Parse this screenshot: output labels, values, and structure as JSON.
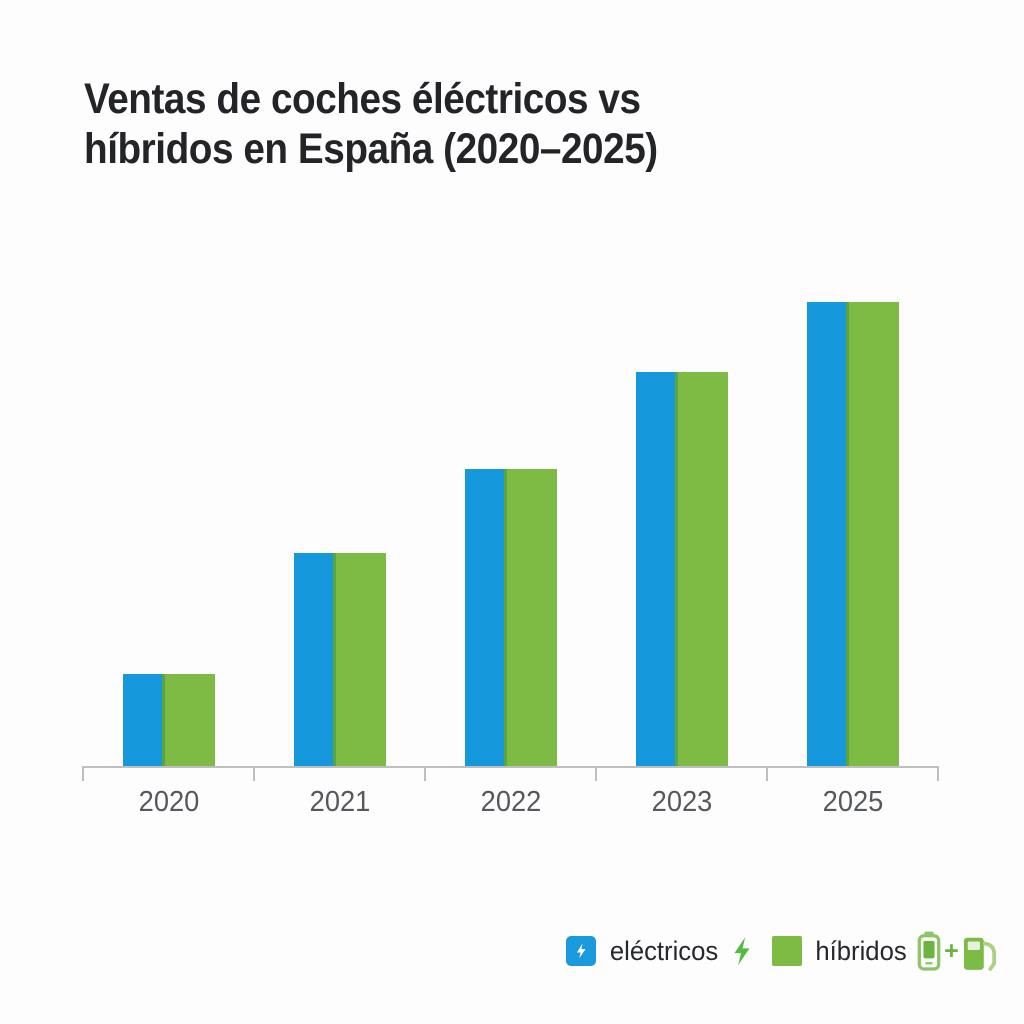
{
  "title": {
    "line1": "Ventas de coches éléctricos vs",
    "line2": "híbridos en España (2020–2025)"
  },
  "chart_data": {
    "type": "bar",
    "title": "Ventas de coches éléctricos vs híbridos en España (2020–2025)",
    "categories": [
      "2020",
      "2021",
      "2022",
      "2023",
      "2025"
    ],
    "series": [
      {
        "name": "eléctricos",
        "color": "#1598DC",
        "values": [
          20,
          46,
          64,
          85,
          100
        ]
      },
      {
        "name": "híbridos",
        "color": "#7DBB44",
        "values": [
          20,
          46,
          64,
          85,
          100
        ]
      }
    ],
    "units": "relative height (tallest bar = 100); no y-axis values shown in image",
    "xlabel": "",
    "ylabel": "",
    "ylim": [
      0,
      100
    ],
    "grid": false,
    "legend_position": "bottom-right"
  },
  "legend": {
    "items": [
      {
        "label": "eléctricos",
        "swatch_color": "#1B99DD",
        "icon": "lightning-bolt"
      },
      {
        "label": "híbridos",
        "swatch_color": "#7DBB44",
        "icon": "battery-plus-fuel-pump"
      }
    ],
    "plus_sign": "+"
  },
  "colors": {
    "background": "#FDFDFD",
    "electric_blue": "#1598DC",
    "hybrid_green": "#7DBB44",
    "green_bar_edge": "#5AA53E",
    "title_text": "#222428",
    "axis_label_text": "#55585C",
    "axis_line": "#BDBFC1",
    "legend_text": "#26282B",
    "bolt_green": "#54BA40",
    "battery_outline_green": "#8DC468",
    "battery_fill_green": "#6CB33F",
    "pump_body_green": "#7CBB45",
    "pump_hose_green": "#A9D285"
  }
}
